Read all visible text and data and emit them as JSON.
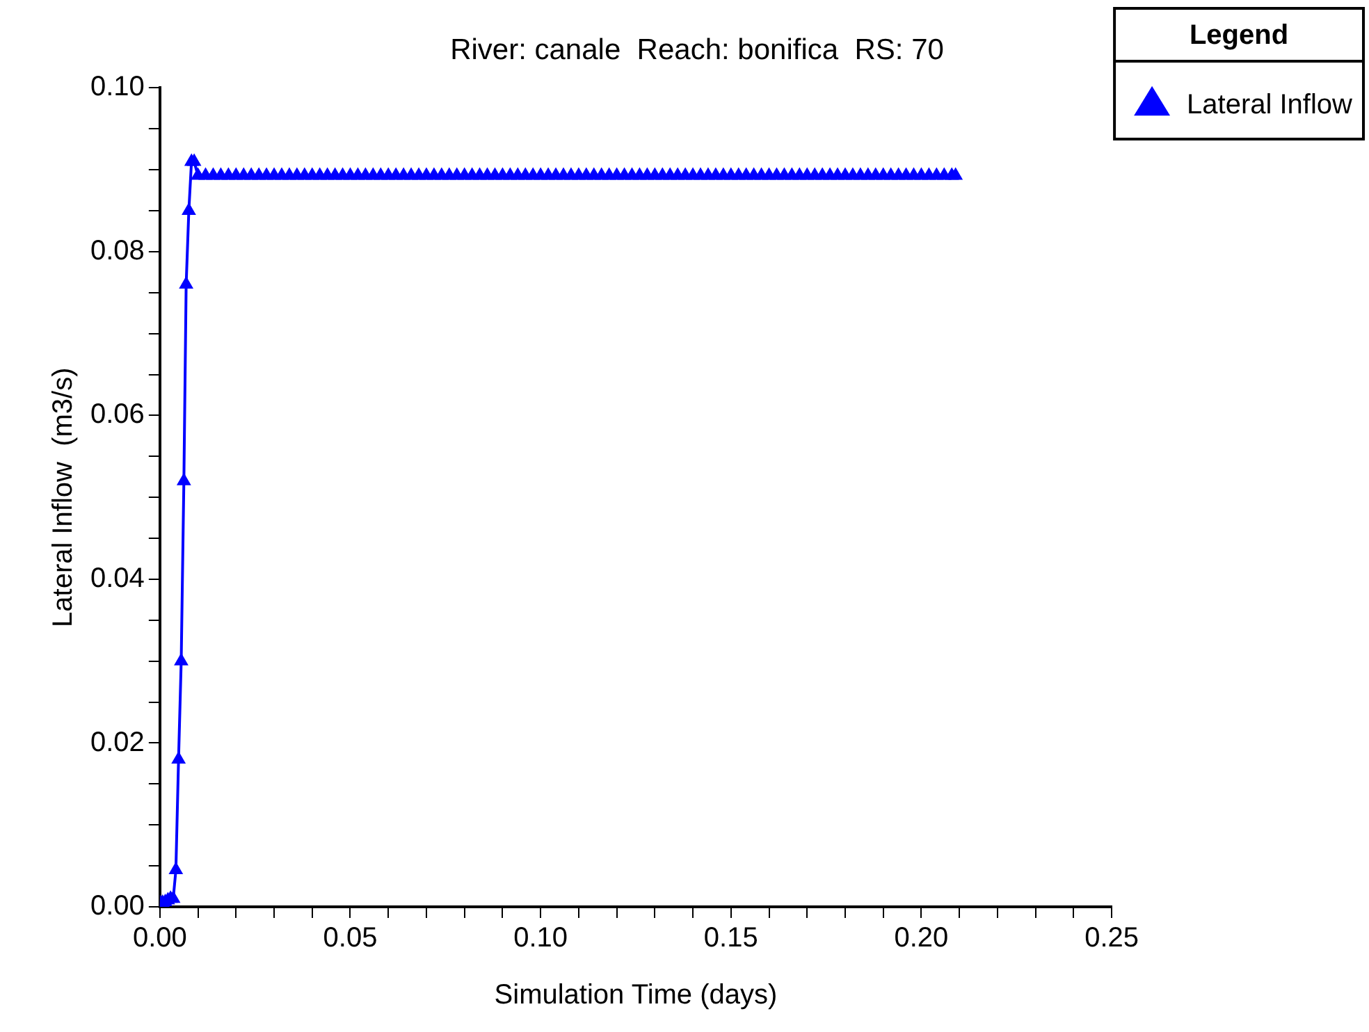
{
  "chart_data": {
    "type": "line",
    "title": "River: canale  Reach: bonifica  RS: 70",
    "xlabel": "Simulation Time (days)",
    "ylabel": "Lateral Inflow  (m3/s)",
    "legend_title": "Legend",
    "legend": "top right",
    "marker": "triangle",
    "line_style": "solid",
    "xlim": [
      0,
      0.25
    ],
    "ylim": [
      0,
      0.1
    ],
    "xticks": [
      {
        "value": 0,
        "label": "0.00"
      },
      {
        "value": 0.01,
        "label": null
      },
      {
        "value": 0.02,
        "label": null
      },
      {
        "value": 0.03,
        "label": null
      },
      {
        "value": 0.04,
        "label": null
      },
      {
        "value": 0.05,
        "label": "0.05"
      },
      {
        "value": 0.06,
        "label": null
      },
      {
        "value": 0.07,
        "label": null
      },
      {
        "value": 0.08,
        "label": null
      },
      {
        "value": 0.09,
        "label": null
      },
      {
        "value": 0.1,
        "label": "0.10"
      },
      {
        "value": 0.11,
        "label": null
      },
      {
        "value": 0.12,
        "label": null
      },
      {
        "value": 0.13,
        "label": null
      },
      {
        "value": 0.14,
        "label": null
      },
      {
        "value": 0.15,
        "label": "0.15"
      },
      {
        "value": 0.16,
        "label": null
      },
      {
        "value": 0.17,
        "label": null
      },
      {
        "value": 0.18,
        "label": null
      },
      {
        "value": 0.19,
        "label": null
      },
      {
        "value": 0.2,
        "label": "0.20"
      },
      {
        "value": 0.21,
        "label": null
      },
      {
        "value": 0.22,
        "label": null
      },
      {
        "value": 0.23,
        "label": null
      },
      {
        "value": 0.24,
        "label": null
      },
      {
        "value": 0.25,
        "label": "0.25"
      }
    ],
    "yticks": [
      {
        "value": 0,
        "label": "0.00"
      },
      {
        "value": 0.005,
        "label": null
      },
      {
        "value": 0.01,
        "label": null
      },
      {
        "value": 0.015,
        "label": null
      },
      {
        "value": 0.02,
        "label": "0.02"
      },
      {
        "value": 0.025,
        "label": null
      },
      {
        "value": 0.03,
        "label": null
      },
      {
        "value": 0.035,
        "label": null
      },
      {
        "value": 0.04,
        "label": "0.04"
      },
      {
        "value": 0.045,
        "label": null
      },
      {
        "value": 0.05,
        "label": null
      },
      {
        "value": 0.055,
        "label": null
      },
      {
        "value": 0.06,
        "label": "0.06"
      },
      {
        "value": 0.065,
        "label": null
      },
      {
        "value": 0.07,
        "label": null
      },
      {
        "value": 0.075,
        "label": null
      },
      {
        "value": 0.08,
        "label": "0.08"
      },
      {
        "value": 0.085,
        "label": null
      },
      {
        "value": 0.09,
        "label": null
      },
      {
        "value": 0.095,
        "label": null
      },
      {
        "value": 0.1,
        "label": "0.10"
      }
    ],
    "series": [
      {
        "name": "Lateral Inflow",
        "color": "#0000ff",
        "x": [
          0,
          0.0007,
          0.0014,
          0.0021,
          0.0028,
          0.0035,
          0.0042,
          0.0049,
          0.0056,
          0.0063,
          0.0069,
          0.0076,
          0.0083,
          0.009,
          0.01,
          0.012,
          0.014,
          0.016,
          0.018,
          0.02,
          0.022,
          0.024,
          0.026,
          0.028,
          0.03,
          0.032,
          0.034,
          0.036,
          0.038,
          0.04,
          0.042,
          0.044,
          0.046,
          0.048,
          0.05,
          0.052,
          0.054,
          0.056,
          0.058,
          0.06,
          0.062,
          0.064,
          0.066,
          0.068,
          0.07,
          0.072,
          0.074,
          0.076,
          0.078,
          0.08,
          0.082,
          0.084,
          0.086,
          0.088,
          0.09,
          0.092,
          0.094,
          0.096,
          0.098,
          0.1,
          0.102,
          0.104,
          0.106,
          0.108,
          0.11,
          0.112,
          0.114,
          0.116,
          0.118,
          0.12,
          0.122,
          0.124,
          0.126,
          0.128,
          0.13,
          0.132,
          0.134,
          0.136,
          0.138,
          0.14,
          0.142,
          0.144,
          0.146,
          0.148,
          0.15,
          0.152,
          0.154,
          0.156,
          0.158,
          0.16,
          0.162,
          0.164,
          0.166,
          0.168,
          0.17,
          0.172,
          0.174,
          0.176,
          0.178,
          0.18,
          0.182,
          0.184,
          0.186,
          0.188,
          0.19,
          0.192,
          0.194,
          0.196,
          0.198,
          0.2,
          0.202,
          0.204,
          0.206,
          0.208,
          0.209
        ],
        "values": [
          0.0005,
          0.0005,
          0.0006,
          0.0008,
          0.001,
          0.001,
          0.0045,
          0.018,
          0.03,
          0.052,
          0.076,
          0.085,
          0.091,
          0.091,
          0.0893,
          0.0893,
          0.0893,
          0.0893,
          0.0893,
          0.0893,
          0.0893,
          0.0893,
          0.0893,
          0.0893,
          0.0893,
          0.0893,
          0.0893,
          0.0893,
          0.0893,
          0.0893,
          0.0893,
          0.0893,
          0.0893,
          0.0893,
          0.0893,
          0.0893,
          0.0893,
          0.0893,
          0.0893,
          0.0893,
          0.0893,
          0.0893,
          0.0893,
          0.0893,
          0.0893,
          0.0893,
          0.0893,
          0.0893,
          0.0893,
          0.0893,
          0.0893,
          0.0893,
          0.0893,
          0.0893,
          0.0893,
          0.0893,
          0.0893,
          0.0893,
          0.0893,
          0.0893,
          0.0893,
          0.0893,
          0.0893,
          0.0893,
          0.0893,
          0.0893,
          0.0893,
          0.0893,
          0.0893,
          0.0893,
          0.0893,
          0.0893,
          0.0893,
          0.0893,
          0.0893,
          0.0893,
          0.0893,
          0.0893,
          0.0893,
          0.0893,
          0.0893,
          0.0893,
          0.0893,
          0.0893,
          0.0893,
          0.0893,
          0.0893,
          0.0893,
          0.0893,
          0.0893,
          0.0893,
          0.0893,
          0.0893,
          0.0893,
          0.0893,
          0.0893,
          0.0893,
          0.0893,
          0.0893,
          0.0893,
          0.0893,
          0.0893,
          0.0893,
          0.0893,
          0.0893,
          0.0893,
          0.0893,
          0.0893,
          0.0893,
          0.0893,
          0.0893,
          0.0893,
          0.0893,
          0.0893,
          0.0893
        ]
      }
    ]
  }
}
